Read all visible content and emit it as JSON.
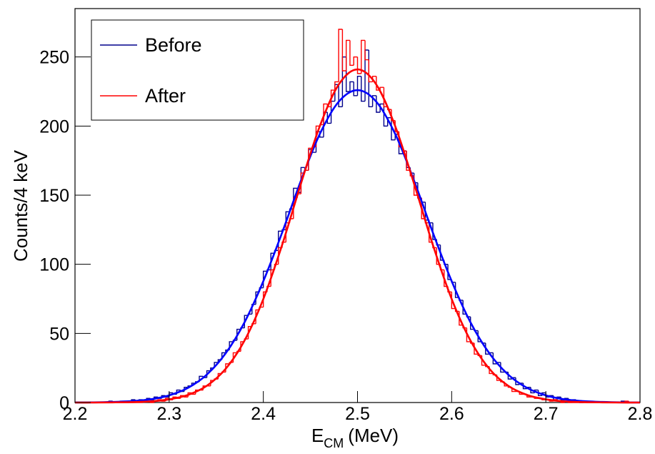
{
  "chart_data": {
    "type": "histogram",
    "bins": [
      2.2,
      2.204,
      2.208,
      2.212,
      2.216,
      2.22,
      2.224,
      2.228,
      2.232,
      2.236,
      2.24,
      2.244,
      2.248,
      2.252,
      2.256,
      2.26,
      2.264,
      2.268,
      2.272,
      2.276,
      2.28,
      2.284,
      2.288,
      2.292,
      2.296,
      2.3,
      2.304,
      2.308,
      2.312,
      2.316,
      2.32,
      2.324,
      2.328,
      2.332,
      2.336,
      2.34,
      2.344,
      2.348,
      2.352,
      2.356,
      2.36,
      2.364,
      2.368,
      2.372,
      2.376,
      2.38,
      2.384,
      2.388,
      2.392,
      2.396,
      2.4,
      2.404,
      2.408,
      2.412,
      2.416,
      2.42,
      2.424,
      2.428,
      2.432,
      2.436,
      2.44,
      2.444,
      2.448,
      2.452,
      2.456,
      2.46,
      2.464,
      2.468,
      2.472,
      2.476,
      2.48,
      2.484,
      2.488,
      2.492,
      2.496,
      2.5,
      2.504,
      2.508,
      2.512,
      2.516,
      2.52,
      2.524,
      2.528,
      2.532,
      2.536,
      2.54,
      2.544,
      2.548,
      2.552,
      2.556,
      2.56,
      2.564,
      2.568,
      2.572,
      2.576,
      2.58,
      2.584,
      2.588,
      2.592,
      2.596,
      2.6,
      2.604,
      2.608,
      2.612,
      2.616,
      2.62,
      2.624,
      2.628,
      2.632,
      2.636,
      2.64,
      2.644,
      2.648,
      2.652,
      2.656,
      2.66,
      2.664,
      2.668,
      2.672,
      2.676,
      2.68,
      2.684,
      2.688,
      2.692,
      2.696,
      2.7,
      2.704,
      2.708,
      2.712,
      2.716,
      2.72,
      2.724,
      2.728,
      2.732,
      2.736,
      2.74,
      2.744,
      2.748,
      2.752,
      2.756,
      2.76,
      2.764,
      2.768,
      2.772,
      2.776,
      2.78,
      2.784,
      2.788,
      2.792,
      2.796,
      2.8
    ],
    "series": [
      {
        "name": "Before",
        "color": "#00008b",
        "values": [
          0,
          0,
          0,
          0,
          0,
          0,
          0,
          0,
          0,
          1,
          0,
          0,
          1,
          1,
          1,
          2,
          1,
          2,
          1,
          3,
          2,
          4,
          3,
          5,
          4,
          7,
          6,
          9,
          8,
          11,
          12,
          14,
          15,
          19,
          18,
          23,
          25,
          29,
          31,
          36,
          38,
          44,
          45,
          53,
          54,
          63,
          64,
          71,
          80,
          83,
          95,
          96,
          108,
          110,
          124,
          125,
          138,
          140,
          155,
          152,
          170,
          168,
          183,
          181,
          196,
          192,
          210,
          202,
          218,
          230,
          214,
          250,
          225,
          232,
          222,
          236,
          218,
          255,
          214,
          222,
          210,
          216,
          200,
          206,
          190,
          194,
          180,
          182,
          170,
          166,
          159,
          148,
          145,
          132,
          130,
          118,
          114,
          103,
          100,
          89,
          87,
          76,
          74,
          64,
          62,
          53,
          52,
          44,
          43,
          35,
          36,
          28,
          29,
          22,
          22,
          17,
          18,
          13,
          14,
          10,
          11,
          7,
          9,
          5,
          7,
          4,
          5,
          2,
          4,
          2,
          3,
          1,
          2,
          1,
          0,
          1,
          0,
          0,
          0,
          0,
          0,
          0,
          0,
          0,
          0,
          1,
          0,
          0,
          0,
          0
        ]
      },
      {
        "name": "After",
        "color": "#ff0000",
        "values": [
          0,
          0,
          0,
          0,
          0,
          0,
          0,
          0,
          0,
          0,
          0,
          0,
          0,
          0,
          0,
          0,
          0,
          0,
          1,
          1,
          0,
          1,
          2,
          1,
          3,
          2,
          4,
          3,
          5,
          4,
          7,
          6,
          9,
          9,
          12,
          12,
          16,
          17,
          21,
          22,
          28,
          29,
          36,
          37,
          44,
          46,
          55,
          57,
          67,
          69,
          80,
          84,
          96,
          100,
          112,
          116,
          130,
          133,
          148,
          151,
          166,
          168,
          184,
          185,
          200,
          201,
          216,
          214,
          226,
          232,
          270,
          240,
          262,
          244,
          250,
          238,
          262,
          248,
          232,
          236,
          226,
          228,
          214,
          212,
          204,
          196,
          185,
          182,
          168,
          164,
          150,
          148,
          133,
          130,
          116,
          112,
          100,
          96,
          84,
          80,
          68,
          66,
          56,
          54,
          44,
          43,
          35,
          34,
          27,
          26,
          21,
          20,
          16,
          15,
          12,
          11,
          8,
          8,
          6,
          6,
          4,
          4,
          3,
          3,
          2,
          2,
          1,
          2,
          1,
          0,
          1,
          0,
          0,
          0,
          0,
          0,
          0,
          0,
          0,
          0,
          0,
          0,
          0,
          0,
          0,
          0,
          1,
          0,
          0
        ]
      }
    ],
    "fit_x": [
      2.2,
      2.22,
      2.24,
      2.26,
      2.28,
      2.3,
      2.32,
      2.34,
      2.36,
      2.38,
      2.4,
      2.42,
      2.44,
      2.46,
      2.48,
      2.5,
      2.52,
      2.54,
      2.56,
      2.58,
      2.6,
      2.62,
      2.64,
      2.66,
      2.68,
      2.7,
      2.72,
      2.74,
      2.76,
      2.78,
      2.8
    ],
    "fits": [
      {
        "color": "#0000ff",
        "values": [
          0.05,
          0.1,
          0.4,
          1.0,
          2.3,
          5.2,
          10.6,
          20.2,
          35.6,
          58.0,
          87.8,
          123.0,
          160.6,
          194.3,
          217.6,
          226,
          217.6,
          194.3,
          160.6,
          123.0,
          87.8,
          58.0,
          35.6,
          20.2,
          10.6,
          5.2,
          2.3,
          1.0,
          0.4,
          0.1,
          0.05
        ]
      },
      {
        "color": "#ff0000",
        "values": [
          0,
          0,
          0.1,
          0.3,
          0.8,
          2.3,
          5.5,
          12.1,
          24.4,
          44.8,
          74.9,
          114.1,
          158.5,
          200,
          230,
          241,
          230,
          200,
          158.5,
          114.1,
          74.9,
          44.8,
          24.4,
          12.1,
          5.5,
          2.3,
          0.8,
          0.3,
          0.1,
          0,
          0
        ]
      }
    ],
    "x_label": "E",
    "x_label_sub": "CM",
    "x_label_unit": "(MeV)",
    "y_label": "Counts/4 keV",
    "xlim": [
      2.2,
      2.8
    ],
    "ylim": [
      0,
      285
    ],
    "xticks": [
      2.2,
      2.3,
      2.4,
      2.5,
      2.6,
      2.7,
      2.8
    ],
    "yticks": [
      0,
      50,
      100,
      150,
      200,
      250
    ],
    "legend": "top-left"
  }
}
